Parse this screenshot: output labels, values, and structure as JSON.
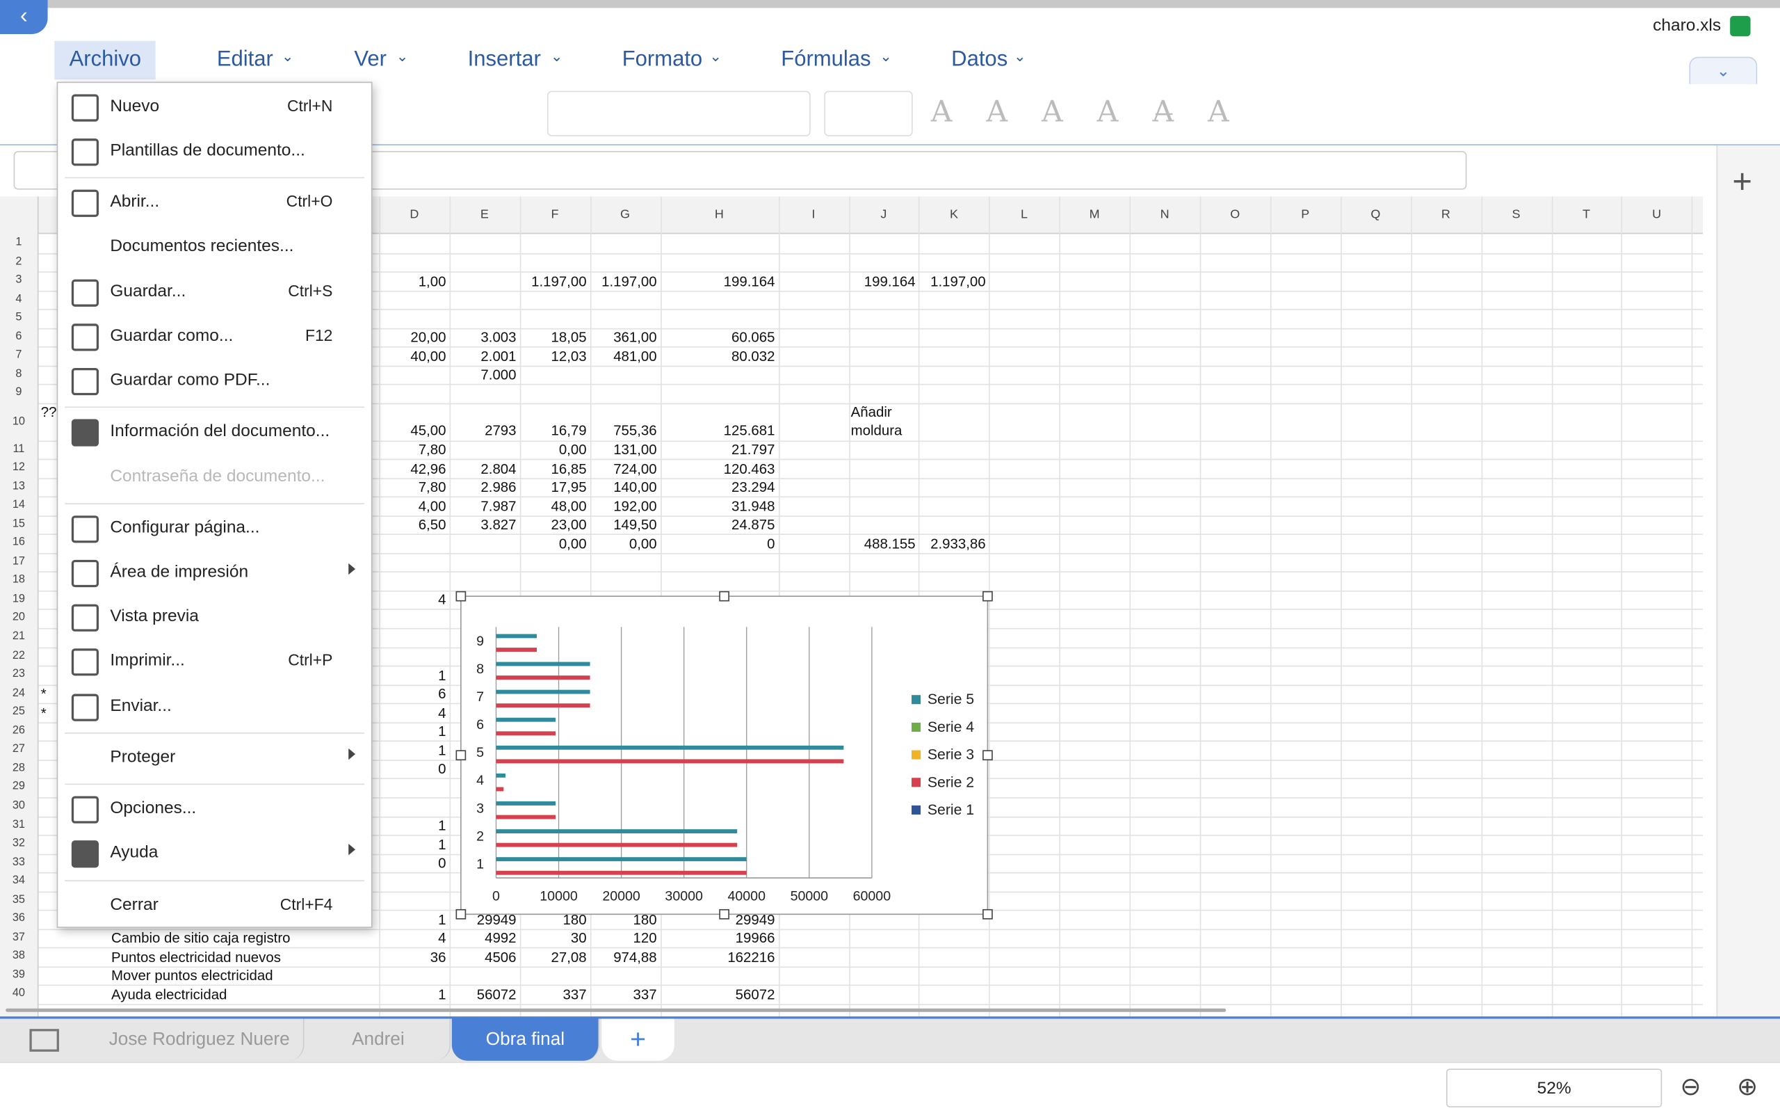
{
  "app": {
    "file_name": "charo.xls",
    "menu_tabs": [
      "Archivo",
      "Editar",
      "Ver",
      "Insertar",
      "Formato",
      "Fórmulas",
      "Datos"
    ]
  },
  "file_menu": {
    "items": [
      {
        "label": "Nuevo",
        "shortcut": "Ctrl+N"
      },
      {
        "label": "Plantillas de documento..."
      },
      {
        "label": "Abrir...",
        "shortcut": "Ctrl+O"
      },
      {
        "label": "Documentos recientes..."
      },
      {
        "label": "Guardar...",
        "shortcut": "Ctrl+S"
      },
      {
        "label": "Guardar como...",
        "shortcut": "F12"
      },
      {
        "label": "Guardar como PDF..."
      },
      {
        "label": "Información del documento..."
      },
      {
        "label": "Contraseña de documento...",
        "disabled": true
      },
      {
        "label": "Configurar página..."
      },
      {
        "label": "Área de impresión",
        "submenu": true
      },
      {
        "label": "Vista previa"
      },
      {
        "label": "Imprimir...",
        "shortcut": "Ctrl+P"
      },
      {
        "label": "Enviar..."
      },
      {
        "label": "Proteger",
        "submenu": true
      },
      {
        "label": "Opciones..."
      },
      {
        "label": "Ayuda",
        "submenu": true
      },
      {
        "label": "Cerrar",
        "shortcut": "Ctrl+F4"
      }
    ]
  },
  "sheet": {
    "columns": [
      "D",
      "E",
      "F",
      "G",
      "H",
      "I",
      "J",
      "K",
      "L",
      "M",
      "N",
      "O",
      "P",
      "Q",
      "R",
      "S",
      "T",
      "U"
    ],
    "row_numbers": [
      "1",
      "2",
      "3",
      "4",
      "5",
      "6",
      "7",
      "8",
      "9",
      "10",
      "11",
      "12",
      "13",
      "14",
      "15",
      "16",
      "17",
      "18",
      "19",
      "20",
      "21",
      "22",
      "23",
      "24",
      "25",
      "26",
      "27",
      "28",
      "29",
      "30",
      "31",
      "32",
      "33",
      "34",
      "35",
      "36",
      "37",
      "38",
      "39",
      "40"
    ],
    "rows": [
      {
        "row": 3,
        "cells": {
          "D": "1,00",
          "F": "1.197,00",
          "G": "1.197,00",
          "H": "199.164",
          "J": "199.164",
          "K": "1.197,00"
        }
      },
      {
        "row": 6,
        "cells": {
          "D": "20,00",
          "E": "3.003",
          "F": "18,05",
          "G": "361,00",
          "H": "60.065"
        }
      },
      {
        "row": 7,
        "cells": {
          "D": "40,00",
          "E": "2.001",
          "F": "12,03",
          "G": "481,00",
          "H": "80.032"
        }
      },
      {
        "row": 8,
        "cells": {
          "E": "7.000"
        }
      },
      {
        "row": 10,
        "cells": {
          "A": "??",
          "D": "45,00",
          "E": "2793",
          "F": "16,79",
          "G": "755,36",
          "H": "125.681",
          "J": "Añadir moldura"
        }
      },
      {
        "row": 11,
        "cells": {
          "D": "7,80",
          "F": "0,00",
          "G": "131,00",
          "H": "21.797"
        }
      },
      {
        "row": 12,
        "cells": {
          "D": "42,96",
          "E": "2.804",
          "F": "16,85",
          "G": "724,00",
          "H": "120.463"
        }
      },
      {
        "row": 13,
        "cells": {
          "D": "7,80",
          "E": "2.986",
          "F": "17,95",
          "G": "140,00",
          "H": "23.294"
        }
      },
      {
        "row": 14,
        "cells": {
          "D": "4,00",
          "E": "7.987",
          "F": "48,00",
          "G": "192,00",
          "H": "31.948"
        }
      },
      {
        "row": 15,
        "cells": {
          "D": "6,50",
          "E": "3.827",
          "F": "23,00",
          "G": "149,50",
          "H": "24.875"
        }
      },
      {
        "row": 16,
        "cells": {
          "F": "0,00",
          "G": "0,00",
          "H": "0",
          "J": "488.155",
          "K": "2.933,86"
        }
      },
      {
        "row": 19,
        "cells": {
          "D": "4"
        }
      },
      {
        "row": 23,
        "cells": {
          "D": "1"
        }
      },
      {
        "row": 24,
        "cells": {
          "A": "*",
          "D": "6"
        }
      },
      {
        "row": 25,
        "cells": {
          "A": "*",
          "D": "4"
        }
      },
      {
        "row": 26,
        "cells": {
          "D": "1"
        }
      },
      {
        "row": 27,
        "cells": {
          "D": "1"
        }
      },
      {
        "row": 28,
        "cells": {
          "D": "0"
        }
      },
      {
        "row": 31,
        "cells": {
          "D": "1"
        }
      },
      {
        "row": 32,
        "cells": {
          "D": "1"
        }
      },
      {
        "row": 33,
        "cells": {
          "D": "0"
        }
      },
      {
        "row": 36,
        "cells": {
          "D": "1",
          "E": "29949",
          "F": "180",
          "G": "180",
          "H": "29949"
        }
      },
      {
        "row": 37,
        "cells": {
          "B": "Cambio de sitio caja registro",
          "D": "4",
          "E": "4992",
          "F": "30",
          "G": "120",
          "H": "19966"
        }
      },
      {
        "row": 38,
        "cells": {
          "B": "Puntos electricidad nuevos",
          "D": "36",
          "E": "4506",
          "F": "27,08",
          "G": "974,88",
          "H": "162216"
        }
      },
      {
        "row": 39,
        "cells": {
          "B": "Mover puntos electricidad"
        }
      },
      {
        "row": 40,
        "cells": {
          "B": "Ayuda electricidad",
          "D": "1",
          "E": "56072",
          "F": "337",
          "G": "337",
          "H": "56072"
        }
      }
    ]
  },
  "chart": {
    "type": "bar",
    "orientation": "horizontal",
    "categories": [
      "1",
      "2",
      "3",
      "4",
      "5",
      "6",
      "7",
      "8",
      "9"
    ],
    "series": [
      {
        "name": "Serie 1",
        "color": "#2f5597",
        "values": [
          0,
          0,
          0,
          0,
          0,
          0,
          0,
          0,
          0
        ]
      },
      {
        "name": "Serie 2",
        "color": "#d6414e",
        "values": [
          40000,
          38500,
          9500,
          1200,
          55500,
          9500,
          15000,
          15000,
          6500
        ]
      },
      {
        "name": "Serie 3",
        "color": "#f0b323",
        "values": [
          0,
          0,
          0,
          0,
          0,
          0,
          0,
          0,
          0
        ]
      },
      {
        "name": "Serie 4",
        "color": "#6fad47",
        "values": [
          0,
          0,
          0,
          0,
          0,
          0,
          0,
          0,
          0
        ]
      },
      {
        "name": "Serie 5",
        "color": "#2e8b9a",
        "values": [
          40000,
          38500,
          9500,
          1500,
          55500,
          9500,
          15000,
          15000,
          6500
        ]
      }
    ],
    "xlim": [
      0,
      60000
    ],
    "xticks": [
      0,
      10000,
      20000,
      30000,
      40000,
      50000,
      60000
    ],
    "grid": true
  },
  "tabs": {
    "sheets": [
      {
        "name": "Jose Rodriguez Nuere"
      },
      {
        "name": "Andrei"
      },
      {
        "name": "Obra final",
        "active": true
      }
    ]
  },
  "status": {
    "zoom": "52%"
  }
}
